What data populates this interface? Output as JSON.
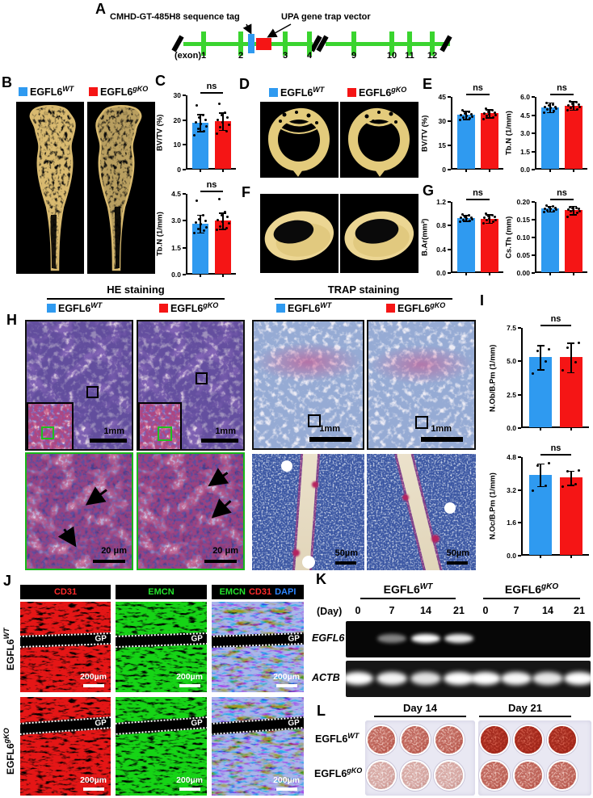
{
  "colors": {
    "wt_blue": "#2f9af0",
    "ko_red": "#f51515",
    "exon_green": "#3ad42f",
    "tag_blue": "#2f9af0",
    "vector_red": "#f51515",
    "bone_gold": "#d9ba6f",
    "fl_red": "#ff2b2b",
    "fl_green": "#25e22c",
    "fl_blue": "#2e86ff"
  },
  "geno": {
    "wt": {
      "name": "EGFL6",
      "sup": "WT"
    },
    "ko": {
      "name": "EGFL6",
      "sup": "gKO"
    }
  },
  "panel_a": {
    "label": "A",
    "tag": "CMHD-GT-485H8 sequence tag",
    "vector": "UPA gene trap vector",
    "exon_caption": "(exon)",
    "exons": [
      "1",
      "2",
      "3",
      "4",
      "9",
      "10",
      "11",
      "12"
    ]
  },
  "panel_b": {
    "label": "B"
  },
  "panel_c": {
    "label": "C"
  },
  "panel_d": {
    "label": "D"
  },
  "panel_e": {
    "label": "E"
  },
  "panel_f": {
    "label": "F"
  },
  "panel_g": {
    "label": "G"
  },
  "panel_h": {
    "label": "H",
    "he_title": "HE staining",
    "trap_title": "TRAP staining",
    "scale_1mm": "1mm",
    "scale_20um": "20 μm",
    "scale_50um": "50µm"
  },
  "panel_i": {
    "label": "I"
  },
  "panel_j": {
    "label": "J",
    "headers": {
      "c1": "CD31",
      "c2": "EMCN",
      "c3": [
        "EMCN",
        "CD31",
        "DAPI"
      ]
    },
    "gp": "GP",
    "scale": "200µm",
    "rows": [
      {
        "name": "EGFL6",
        "sup": "WT"
      },
      {
        "name": "EGFL6",
        "sup": "gKO"
      }
    ]
  },
  "panel_k": {
    "label": "K",
    "day_caption": "(Day)",
    "days": [
      "0",
      "7",
      "14",
      "21",
      "0",
      "7",
      "14",
      "21"
    ],
    "genes": [
      "EGFL6",
      "ACTB"
    ],
    "bands": {
      "egfl6": [
        0,
        0.5,
        1,
        0.92,
        0,
        0,
        0,
        0
      ],
      "actb": [
        1,
        0.95,
        0.88,
        1,
        1,
        0.97,
        0.9,
        1
      ]
    }
  },
  "panel_l": {
    "label": "L",
    "day14": "Day 14",
    "day21": "Day 21",
    "rows": [
      {
        "name": "EGFL6",
        "sup": "WT"
      },
      {
        "name": "EGFL6",
        "sup": "gKO"
      }
    ],
    "mineralization": {
      "wt": {
        "d14": "medium",
        "d21": "dark"
      },
      "ko": {
        "d14": "light",
        "d21": "medium"
      }
    }
  },
  "chart_data": [
    {
      "id": "C1",
      "panel": "C",
      "type": "bar",
      "ylabel": "BV/TV (%)",
      "categories": [
        "EGFL6 WT",
        "EGFL6 gKO"
      ],
      "values": [
        19,
        19.5
      ],
      "errors": [
        3.5,
        3.5
      ],
      "points": [
        [
          14,
          15.5,
          16.5,
          17.5,
          18.5,
          19,
          20,
          21,
          22,
          26
        ],
        [
          14.5,
          15.5,
          17,
          18,
          19,
          20,
          21,
          22,
          23,
          26.5
        ]
      ],
      "yticks": [
        0,
        10,
        20,
        30
      ],
      "ylim": [
        0,
        30
      ],
      "tick_decimals": 0,
      "sig": "ns"
    },
    {
      "id": "C2",
      "panel": "C",
      "type": "bar",
      "ylabel": "Tb.N (1/mm)",
      "categories": [
        "EGFL6 WT",
        "EGFL6 gKO"
      ],
      "values": [
        2.85,
        3.0
      ],
      "errors": [
        0.5,
        0.45
      ],
      "points": [
        [
          2.3,
          2.45,
          2.55,
          2.65,
          2.8,
          2.9,
          3.0,
          3.1,
          3.3,
          4.1
        ],
        [
          2.5,
          2.6,
          2.7,
          2.85,
          2.95,
          3.05,
          3.2,
          3.3,
          3.5,
          4.2
        ]
      ],
      "yticks": [
        0,
        1.5,
        3,
        4.5
      ],
      "ylim": [
        0,
        4.5
      ],
      "tick_decimals": 1,
      "sig": "ns"
    },
    {
      "id": "E1",
      "panel": "E",
      "type": "bar",
      "ylabel": "BV/TV (%)",
      "categories": [
        "EGFL6 WT",
        "EGFL6 gKO"
      ],
      "values": [
        34,
        35
      ],
      "errors": [
        2.5,
        2.5
      ],
      "points": [
        [
          31,
          32,
          32.5,
          33,
          33.5,
          34,
          34.5,
          35,
          36,
          37
        ],
        [
          31.5,
          32.5,
          33.5,
          34,
          34.5,
          35,
          35.5,
          36,
          37,
          38
        ]
      ],
      "yticks": [
        0,
        15,
        30,
        45
      ],
      "ylim": [
        0,
        45
      ],
      "tick_decimals": 0,
      "sig": "ns"
    },
    {
      "id": "E2",
      "panel": "E",
      "type": "bar",
      "ylabel": "Tb.N (1/mm)",
      "categories": [
        "EGFL6 WT",
        "EGFL6 gKO"
      ],
      "values": [
        5.15,
        5.3
      ],
      "errors": [
        0.4,
        0.35
      ],
      "points": [
        [
          4.7,
          4.85,
          4.95,
          5.05,
          5.1,
          5.15,
          5.2,
          5.3,
          5.4,
          5.5
        ],
        [
          4.9,
          5.0,
          5.1,
          5.2,
          5.25,
          5.3,
          5.4,
          5.45,
          5.55,
          5.65
        ]
      ],
      "yticks": [
        0,
        1.5,
        3,
        4.5,
        6
      ],
      "ylim": [
        0,
        6
      ],
      "tick_decimals": 1,
      "sig": "ns"
    },
    {
      "id": "G1",
      "panel": "G",
      "type": "bar",
      "ylabel": "B.Ar(mm²)",
      "categories": [
        "EGFL6 WT",
        "EGFL6 gKO"
      ],
      "values": [
        0.93,
        0.92
      ],
      "errors": [
        0.05,
        0.07
      ],
      "points": [
        [
          0.86,
          0.88,
          0.9,
          0.91,
          0.92,
          0.93,
          0.94,
          0.95,
          0.97,
          0.99
        ],
        [
          0.84,
          0.87,
          0.89,
          0.9,
          0.92,
          0.93,
          0.95,
          0.96,
          0.98,
          1.0
        ]
      ],
      "yticks": [
        0,
        0.4,
        0.8,
        1.2
      ],
      "ylim": [
        0,
        1.2
      ],
      "tick_decimals": 1,
      "sig": "ns"
    },
    {
      "id": "G2",
      "panel": "G",
      "type": "bar",
      "ylabel": "Cs.Th (mm)",
      "categories": [
        "EGFL6 WT",
        "EGFL6 gKO"
      ],
      "values": [
        0.181,
        0.177
      ],
      "errors": [
        0.008,
        0.012
      ],
      "points": [
        [
          0.172,
          0.175,
          0.177,
          0.179,
          0.18,
          0.181,
          0.183,
          0.185,
          0.187,
          0.19
        ],
        [
          0.158,
          0.17,
          0.173,
          0.175,
          0.177,
          0.179,
          0.18,
          0.182,
          0.184,
          0.186
        ]
      ],
      "yticks": [
        0,
        0.05,
        0.1,
        0.15,
        0.2
      ],
      "ylim": [
        0,
        0.2
      ],
      "tick_decimals": 2,
      "sig": "ns"
    },
    {
      "id": "I1",
      "panel": "I",
      "type": "bar",
      "ylabel": "N.Ob/B.Pm (1/mm)",
      "categories": [
        "EGFL6 WT",
        "EGFL6 gKO"
      ],
      "values": [
        5.3,
        5.3
      ],
      "errors": [
        0.9,
        1.1
      ],
      "points": [
        [
          4.1,
          5.0,
          5.8,
          5.9
        ],
        [
          4.3,
          4.9,
          6.0,
          6.4
        ]
      ],
      "yticks": [
        0,
        2.5,
        5,
        7.5
      ],
      "ylim": [
        0,
        7.5
      ],
      "tick_decimals": 1,
      "sig": "ns"
    },
    {
      "id": "I2",
      "panel": "I",
      "type": "bar",
      "ylabel": "N.Oc/B.Pm (1/mm)",
      "categories": [
        "EGFL6 WT",
        "EGFL6 gKO"
      ],
      "values": [
        3.95,
        3.8
      ],
      "errors": [
        0.55,
        0.35
      ],
      "points": [
        [
          3.15,
          3.4,
          4.4,
          4.5
        ],
        [
          3.35,
          3.5,
          4.1,
          4.15
        ]
      ],
      "yticks": [
        0,
        1.6,
        3.2,
        4.8
      ],
      "ylim": [
        0,
        4.8
      ],
      "tick_decimals": 1,
      "sig": "ns"
    }
  ]
}
